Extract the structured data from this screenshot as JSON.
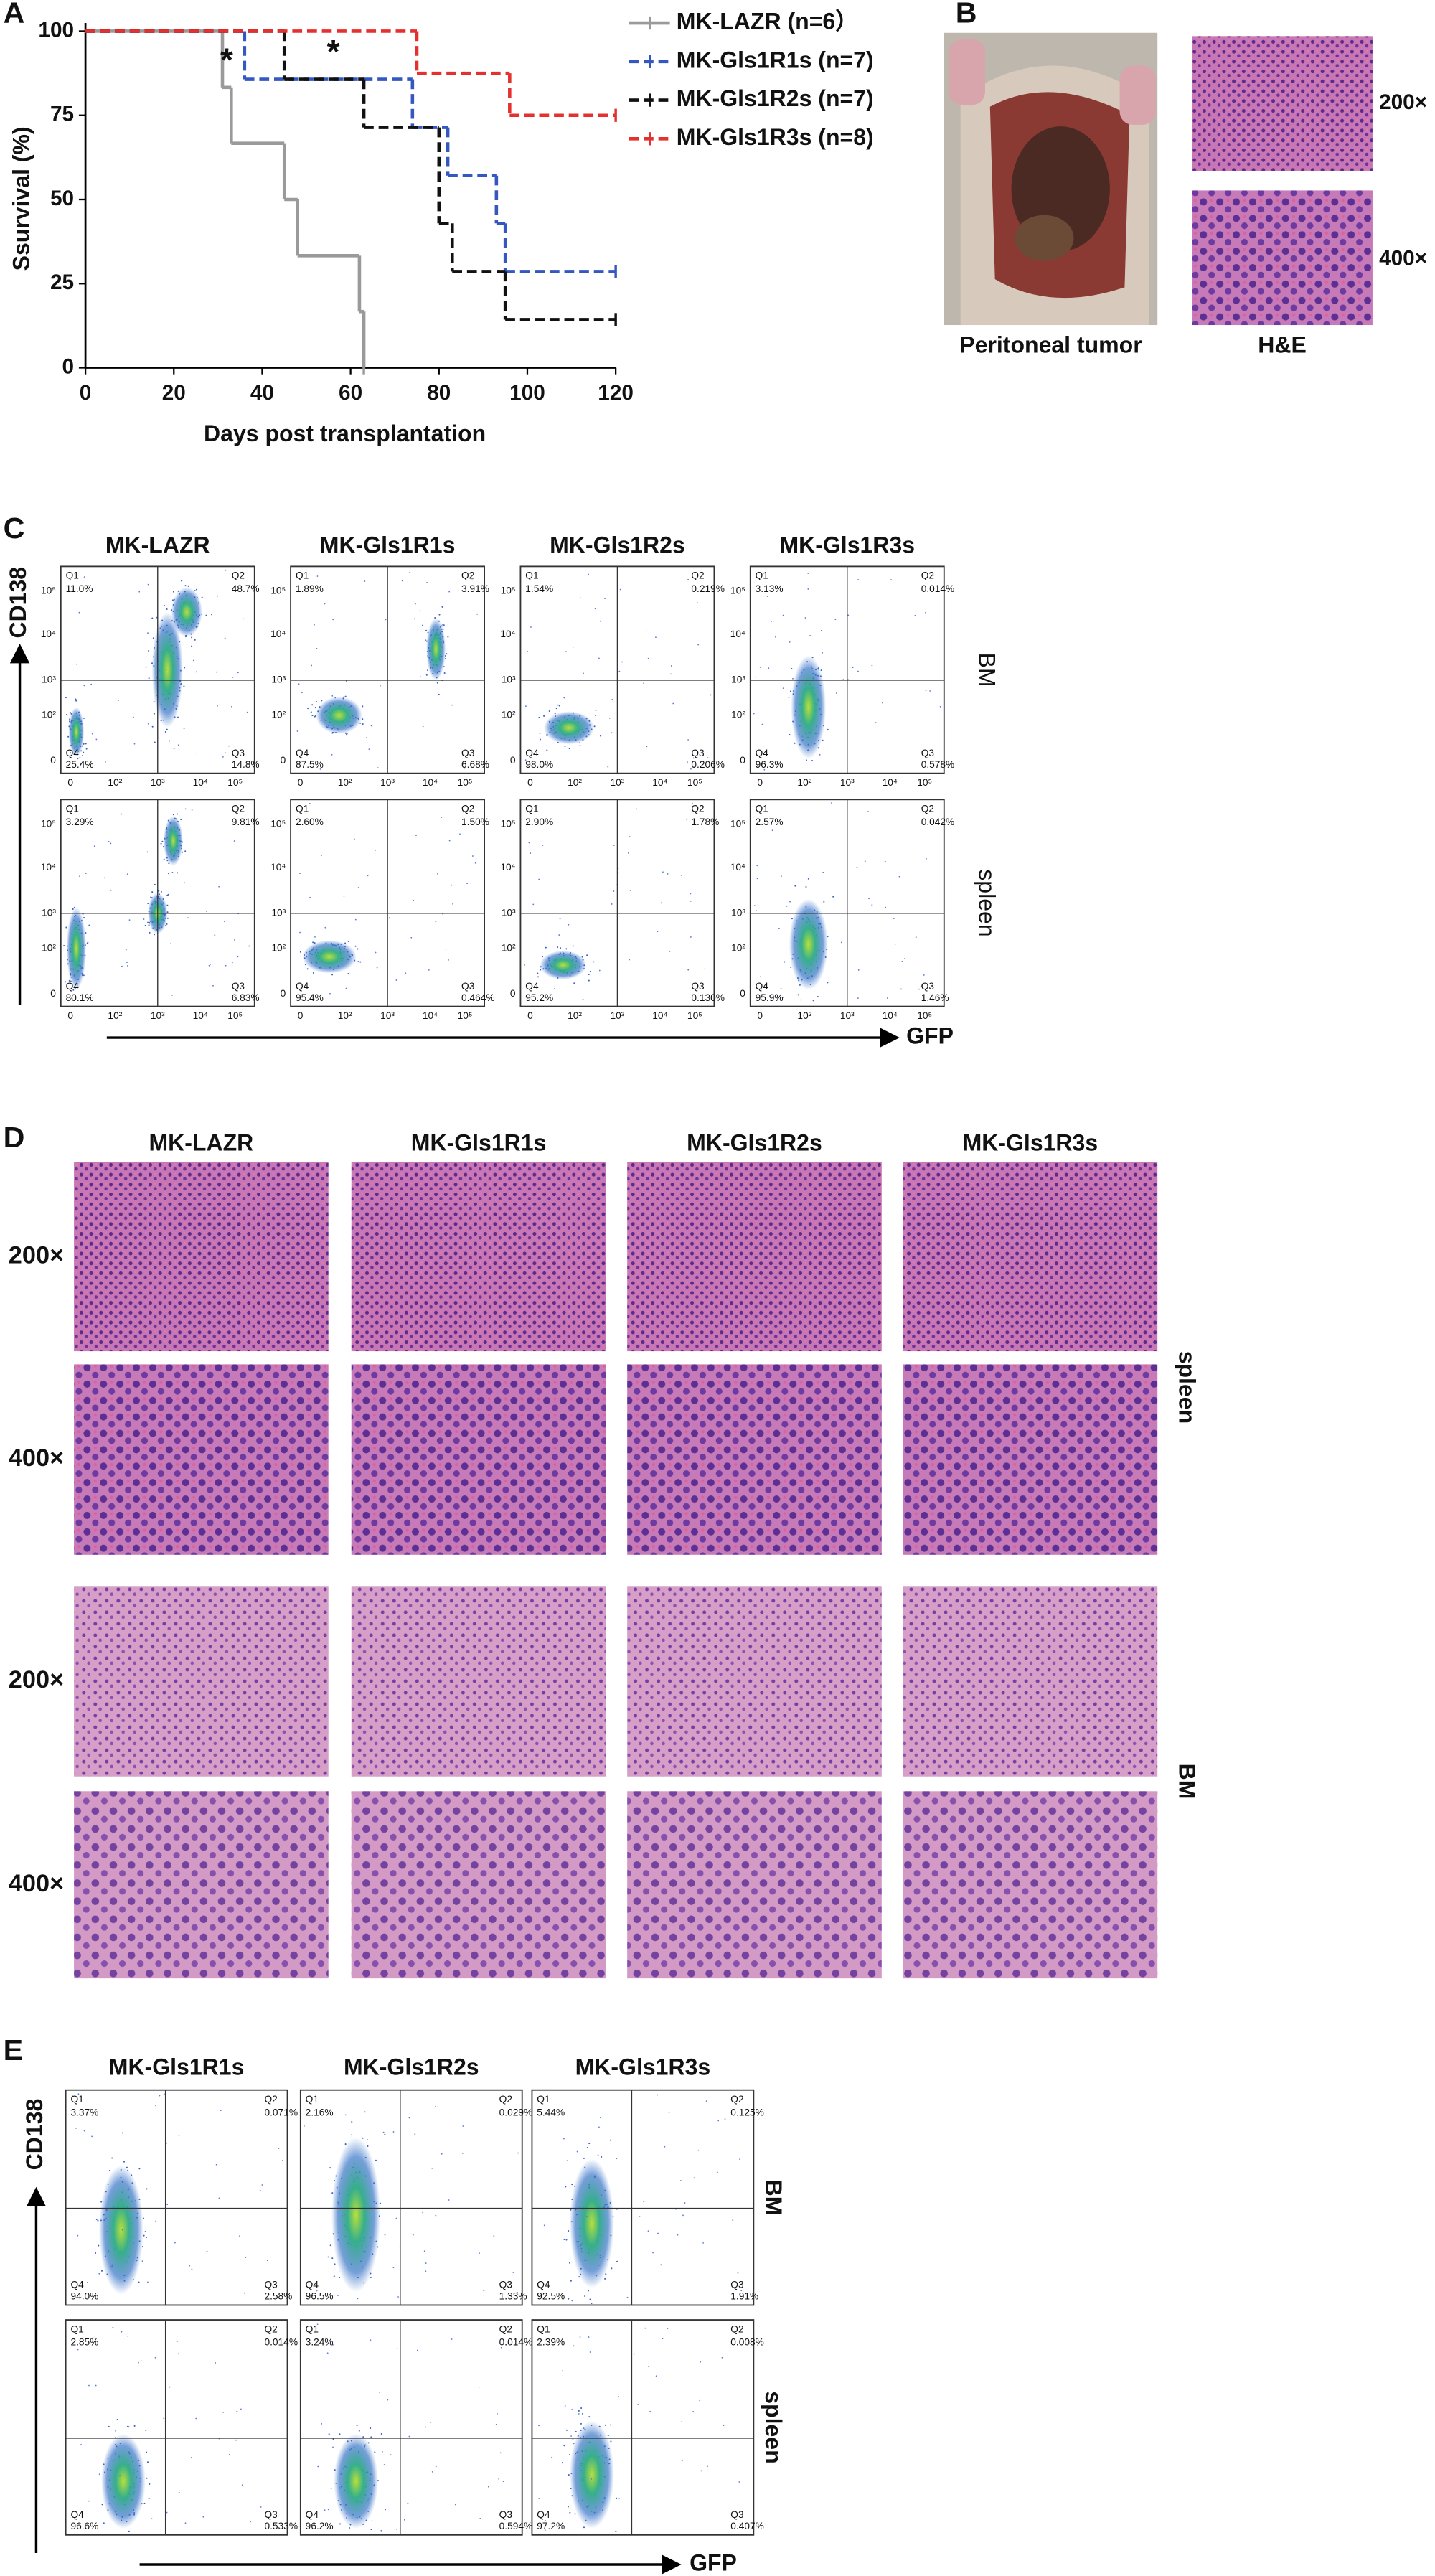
{
  "panel_labels": [
    "A",
    "B",
    "C",
    "D",
    "E"
  ],
  "chart_data": {
    "type": "line",
    "step": true,
    "x_label": "Days post transplantation",
    "y_label": "Ssurvival (%)",
    "xlim": [
      0,
      120
    ],
    "ylim": [
      0,
      100
    ],
    "xticks": [
      0,
      20,
      40,
      60,
      80,
      100,
      120
    ],
    "yticks": [
      0,
      25,
      50,
      75,
      100
    ],
    "grid": false,
    "annotations": [
      "*",
      "*"
    ],
    "series": [
      {
        "name": "MK-LAZR (n=6）",
        "color": "#9a9a9a",
        "dashed": false,
        "x": [
          0,
          31,
          33,
          45,
          48,
          62,
          63
        ],
        "values": [
          100,
          83.3,
          66.7,
          50,
          33.3,
          16.7,
          0
        ]
      },
      {
        "name": "MK-Gls1R1s (n=7)",
        "color": "#3558c0",
        "dashed": true,
        "x": [
          0,
          36,
          74,
          82,
          93,
          95,
          120
        ],
        "values": [
          100,
          85.7,
          71.4,
          57.1,
          42.9,
          28.6,
          28.6
        ]
      },
      {
        "name": "MK-Gls1R2s (n=7)",
        "color": "#111111",
        "dashed": true,
        "x": [
          0,
          45,
          63,
          80,
          83,
          95,
          120
        ],
        "values": [
          100,
          85.7,
          71.4,
          42.9,
          28.6,
          14.3,
          14.3
        ]
      },
      {
        "name": "MK-Gls1R3s (n=8)",
        "color": "#e53030",
        "dashed": true,
        "x": [
          0,
          75,
          96,
          120
        ],
        "values": [
          100,
          87.5,
          75,
          75
        ]
      }
    ]
  },
  "photos": {
    "peritoneal_label": "Peritoneal tumor",
    "he_label": "H&E",
    "magnifications": [
      "200×",
      "400×"
    ]
  },
  "flow_c": {
    "y_axis": "CD138",
    "x_axis": "GFP",
    "columns": [
      "MK-LAZR",
      "MK-Gls1R1s",
      "MK-Gls1R2s",
      "MK-Gls1R3s"
    ],
    "quadrant_names": [
      "Q1",
      "Q2",
      "Q3",
      "Q4"
    ],
    "ticks": [
      "0",
      "10²",
      "10³",
      "10⁴",
      "10⁵"
    ],
    "rows": [
      {
        "tissue": "BM",
        "plots": [
          [
            "11.0%",
            "48.7%",
            "14.8%",
            "25.4%"
          ],
          [
            "1.89%",
            "3.91%",
            "6.68%",
            "87.5%"
          ],
          [
            "1.54%",
            "0.219%",
            "0.206%",
            "98.0%"
          ],
          [
            "3.13%",
            "0.014%",
            "0.578%",
            "96.3%"
          ]
        ]
      },
      {
        "tissue": "spleen",
        "plots": [
          [
            "3.29%",
            "9.81%",
            "6.83%",
            "80.1%"
          ],
          [
            "2.60%",
            "1.50%",
            "0.464%",
            "95.4%"
          ],
          [
            "2.90%",
            "1.78%",
            "0.130%",
            "95.2%"
          ],
          [
            "2.57%",
            "0.042%",
            "1.46%",
            "95.9%"
          ]
        ]
      }
    ]
  },
  "histology": {
    "columns": [
      "MK-LAZR",
      "MK-Gls1R1s",
      "MK-Gls1R2s",
      "MK-Gls1R3s"
    ],
    "magnifications": [
      "200×",
      "400×",
      "200×",
      "400×"
    ],
    "tissues": [
      "spleen",
      "BM"
    ]
  },
  "flow_e": {
    "y_axis": "CD138",
    "x_axis": "GFP",
    "columns": [
      "MK-Gls1R1s",
      "MK-Gls1R2s",
      "MK-Gls1R3s"
    ],
    "quadrant_names": [
      "Q1",
      "Q2",
      "Q3",
      "Q4"
    ],
    "rows": [
      {
        "tissue": "BM",
        "plots": [
          [
            "3.37%",
            "0.071%",
            "2.58%",
            "94.0%"
          ],
          [
            "2.16%",
            "0.029%",
            "1.33%",
            "96.5%"
          ],
          [
            "5.44%",
            "0.125%",
            "1.91%",
            "92.5%"
          ]
        ]
      },
      {
        "tissue": "spleen",
        "plots": [
          [
            "2.85%",
            "0.014%",
            "0.533%",
            "96.6%"
          ],
          [
            "3.24%",
            "0.014%",
            "0.594%",
            "96.2%"
          ],
          [
            "2.39%",
            "0.008%",
            "0.407%",
            "97.2%"
          ]
        ]
      }
    ]
  }
}
